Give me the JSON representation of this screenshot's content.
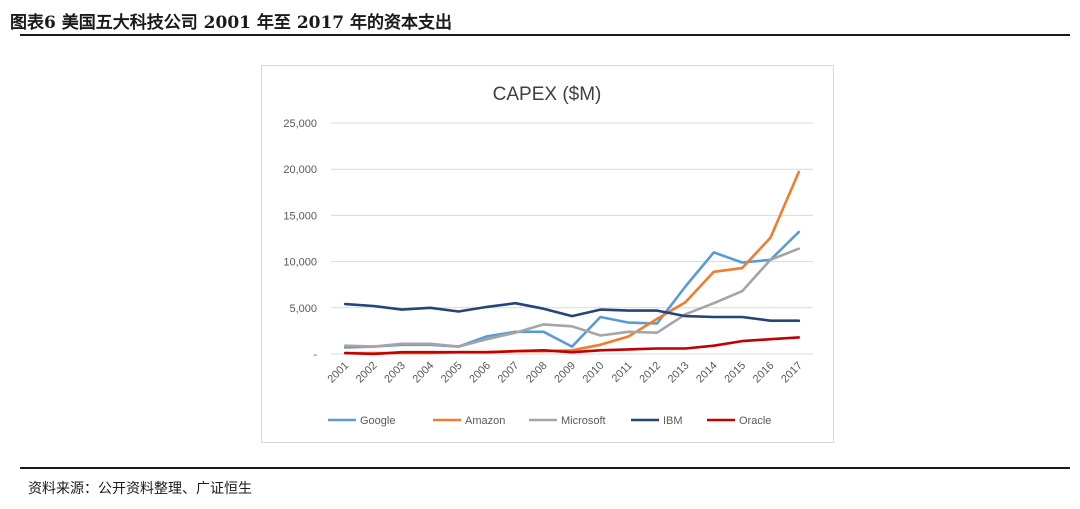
{
  "header": {
    "figure_title": "图表6  美国五大科技公司 2001 年至 2017 年的资本支出"
  },
  "source": {
    "text": "资料来源：公开资料整理、广证恒生"
  },
  "chart_data": {
    "type": "line",
    "title": "CAPEX ($M)",
    "categories": [
      "2001",
      "2002",
      "2003",
      "2004",
      "2005",
      "2006",
      "2007",
      "2008",
      "2009",
      "2010",
      "2011",
      "2012",
      "2013",
      "2014",
      "2015",
      "2016",
      "2017"
    ],
    "ylim": [
      0,
      25000
    ],
    "yticks": [
      0,
      5000,
      10000,
      15000,
      20000,
      25000
    ],
    "ytick_labels": [
      "-",
      "5,000",
      "10,000",
      "15,000",
      "20,000",
      "25,000"
    ],
    "grid": true,
    "legend_position": "bottom",
    "series": [
      {
        "name": "Google",
        "color": "#5b9bd5",
        "values": [
          700,
          800,
          1000,
          1000,
          800,
          1900,
          2400,
          2400,
          800,
          4000,
          3400,
          3300,
          7300,
          11000,
          9900,
          10200,
          13200
        ]
      },
      {
        "name": "Amazon",
        "color": "#ed7d31",
        "values": [
          100,
          100,
          100,
          100,
          200,
          200,
          300,
          300,
          400,
          1000,
          1900,
          3800,
          5600,
          8900,
          9300,
          12600,
          19700
        ]
      },
      {
        "name": "Microsoft",
        "color": "#a5a5a5",
        "values": [
          900,
          800,
          1100,
          1100,
          800,
          1600,
          2300,
          3200,
          3000,
          2000,
          2400,
          2300,
          4300,
          5500,
          6800,
          10200,
          11400
        ]
      },
      {
        "name": "IBM",
        "color": "#264478",
        "values": [
          5400,
          5200,
          4800,
          5000,
          4600,
          5100,
          5500,
          4900,
          4100,
          4800,
          4700,
          4700,
          4100,
          4000,
          4000,
          3600,
          3600
        ]
      },
      {
        "name": "Oracle",
        "color": "#c00000",
        "values": [
          100,
          0,
          200,
          200,
          200,
          200,
          300,
          400,
          200,
          400,
          500,
          600,
          600,
          900,
          1400,
          1600,
          1800
        ]
      }
    ]
  }
}
